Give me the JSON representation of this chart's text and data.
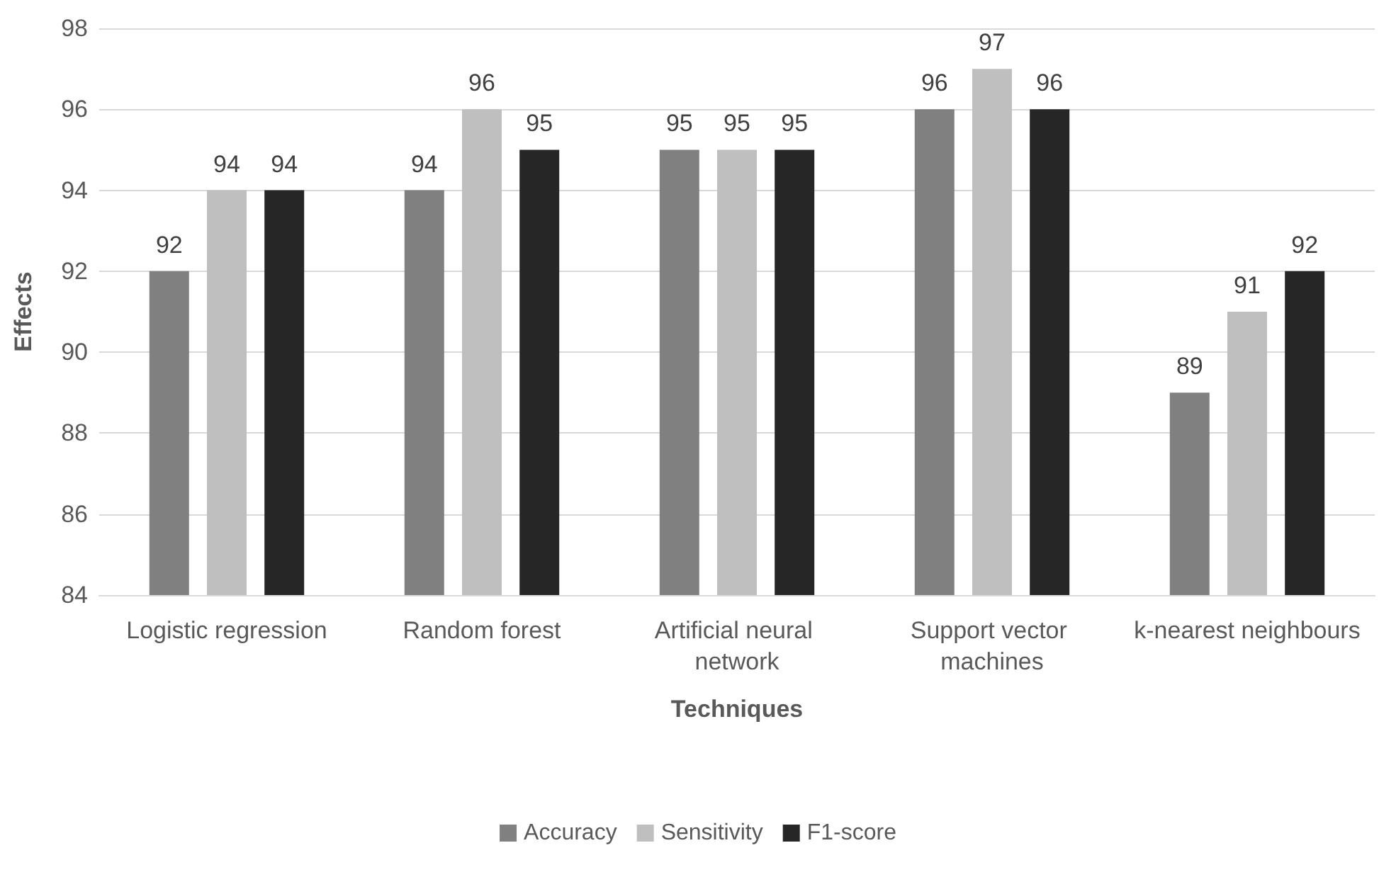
{
  "chart_data": {
    "type": "bar",
    "xlabel": "Techniques",
    "ylabel": "Effects",
    "categories": [
      "Logistic regression",
      "Random forest",
      "Artificial neural network",
      "Support vector machines",
      "k-nearest neighbours"
    ],
    "series": [
      {
        "name": "Accuracy",
        "color": "#808080",
        "values": [
          92,
          94,
          95,
          96,
          89
        ]
      },
      {
        "name": "Sensitivity",
        "color": "#bfbfbf",
        "values": [
          94,
          96,
          95,
          97,
          91
        ]
      },
      {
        "name": "F1-score",
        "color": "#262626",
        "values": [
          94,
          95,
          95,
          96,
          92
        ]
      }
    ],
    "ylim": [
      84,
      98
    ],
    "yticks": [
      84,
      86,
      88,
      90,
      92,
      94,
      96,
      98
    ],
    "grid": "y",
    "legend": "bottom",
    "data_labels": true
  }
}
